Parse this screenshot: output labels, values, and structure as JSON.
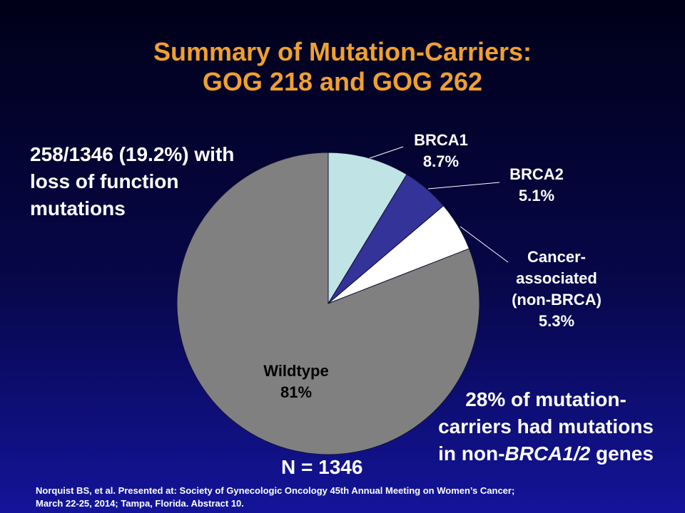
{
  "title": {
    "line1": "Summary of Mutation-Carriers:",
    "line2": "GOG 218 and GOG 262"
  },
  "left_note": {
    "lines": [
      "258/1346 (19.2%) with",
      "loss of function",
      "mutations"
    ]
  },
  "right_note": {
    "lines": [
      "28% of mutation-",
      "carriers had mutations"
    ],
    "line3_prefix": "in non-",
    "line3_italic": "BRCA1/2",
    "line3_suffix": " genes"
  },
  "n_label": "N = 1346",
  "citation": {
    "line1": "Norquist BS, et al. Presented at:  Society of Gynecologic Oncology 45th Annual Meeting on Women’s Cancer;",
    "line2": "March 22-25, 2014; Tampa, Florida. Abstract 10."
  },
  "chart_data": {
    "type": "pie",
    "slices": [
      {
        "name": "BRCA1",
        "label_lines": [
          "BRCA1",
          "8.7%"
        ],
        "value": 8.7,
        "color": "#c0e4e6"
      },
      {
        "name": "BRCA2",
        "label_lines": [
          "BRCA2",
          "5.1%"
        ],
        "value": 5.1,
        "color": "#333399"
      },
      {
        "name": "Cancer-associated (non-BRCA)",
        "label_lines": [
          "Cancer-",
          "associated",
          "(non-BRCA)",
          "5.3%"
        ],
        "value": 5.3,
        "color": "#ffffff"
      },
      {
        "name": "Wildtype",
        "label_lines": [
          "Wildtype",
          "81%"
        ],
        "value": 81,
        "color": "#808080"
      }
    ],
    "start_angle": "12 o'clock",
    "direction": "clockwise"
  }
}
